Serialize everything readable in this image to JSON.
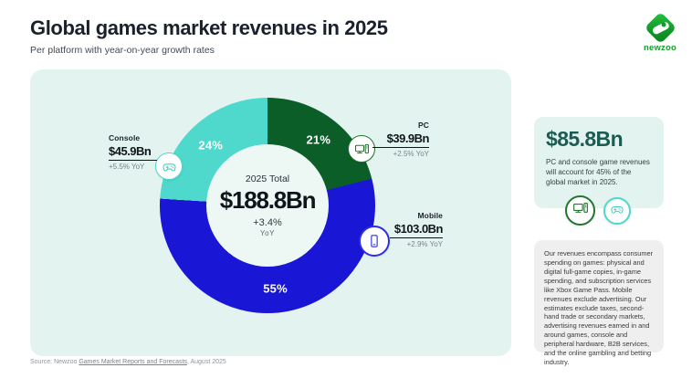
{
  "header": {
    "title": "Global games market revenues in 2025",
    "subtitle": "Per platform with year-on-year growth rates"
  },
  "brand": {
    "name": "newzoo",
    "green": "#13a02b"
  },
  "chart_data": {
    "type": "donut",
    "title": "Global games market revenues in 2025",
    "subtitle": "Per platform with year-on-year growth rates",
    "unit": "USD billions",
    "start_angle_deg": 0,
    "direction": "clockwise",
    "segments": [
      {
        "label": "PC",
        "share_pct": 21,
        "value_bn": 39.9,
        "value_label": "$39.9Bn",
        "yoy": "+2.5% YoY",
        "color": "#0b5e27"
      },
      {
        "label": "Mobile",
        "share_pct": 55,
        "value_bn": 103.0,
        "value_label": "$103.0Bn",
        "yoy": "+2.9% YoY",
        "color": "#1a16d6"
      },
      {
        "label": "Console",
        "share_pct": 24,
        "value_bn": 45.9,
        "value_label": "$45.9Bn",
        "yoy": "+5.5% YoY",
        "color": "#4fd8cc"
      }
    ],
    "center": {
      "label": "2025 Total",
      "total": "$188.8Bn",
      "growth": "+3.4%",
      "growth_unit": "YoY"
    }
  },
  "insight": {
    "value": "$85.8Bn",
    "text": "PC and console game revenues will account for 45% of the global market in 2025.",
    "accent": "#1d5b52"
  },
  "notes": {
    "text": "Our revenues encompass consumer spending on games: physical and digital full-game copies, in-game spending, and subscription services like Xbox Game Pass. Mobile revenues exclude advertising. Our estimates exclude taxes, second-hand trade or secondary markets, advertising revenues earned in and around games, console and peripheral hardware, B2B services, and the online gambling and betting industry."
  },
  "source": {
    "prefix": "Source: Newzoo ",
    "link": "Games Market Reports and Forecasts",
    "suffix": ", August 2025"
  }
}
